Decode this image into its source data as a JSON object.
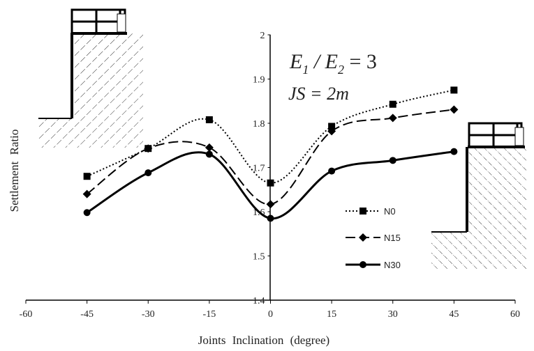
{
  "chart_data": {
    "type": "line",
    "title": "",
    "xlabel": "Joints Inclination (degree)",
    "ylabel": "Settlement Ratio",
    "xlim": [
      -60,
      60
    ],
    "ylim": [
      1.4,
      2.0
    ],
    "x_ticks": [
      "-60",
      "-45",
      "-30",
      "-15",
      "0",
      "15",
      "30",
      "45",
      "60"
    ],
    "y_ticks": [
      "1.4",
      "1.5",
      "1.6",
      "1.7",
      "1.8",
      "1.9",
      "2"
    ],
    "x": [
      -45,
      -30,
      -15,
      0,
      15,
      30,
      45
    ],
    "series": [
      {
        "name": "N0",
        "values": [
          1.68,
          1.743,
          1.808,
          1.665,
          1.793,
          1.843,
          1.875
        ],
        "line_style": "dotted",
        "marker": "square"
      },
      {
        "name": "N15",
        "values": [
          1.64,
          1.743,
          1.745,
          1.617,
          1.782,
          1.812,
          1.831
        ],
        "line_style": "dashed",
        "marker": "diamond"
      },
      {
        "name": "N30",
        "values": [
          1.598,
          1.688,
          1.73,
          1.585,
          1.692,
          1.716,
          1.736
        ],
        "line_style": "solid",
        "marker": "circle"
      }
    ],
    "annotations": {
      "ratio_lhs": "E",
      "ratio_sub1": "1",
      "ratio_mid": " / E",
      "ratio_sub2": "2",
      "ratio_rhs": " = 3",
      "spacing": "JS = 2m"
    },
    "legend_position": "right-center",
    "grid": false,
    "colors": {
      "line": "#000000",
      "hatch": "#333333"
    }
  }
}
